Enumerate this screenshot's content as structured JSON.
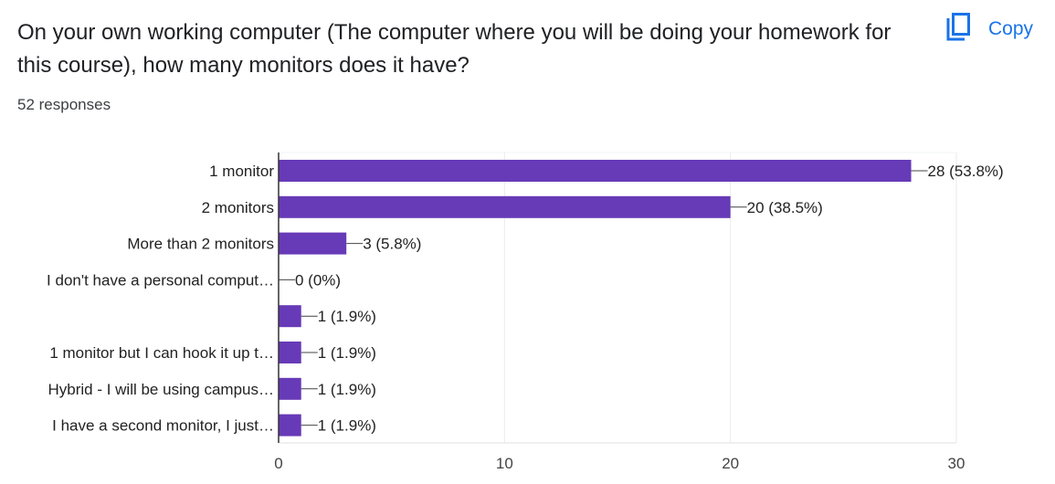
{
  "question": {
    "title": "On your own working computer (The computer where you will be doing your homework for this course), how many monitors does it have?",
    "responses": "52 responses"
  },
  "copy_button": {
    "label": "Copy",
    "icon": "copy-icon"
  },
  "colors": {
    "bar": "#673ab7",
    "accent": "#1a73e8"
  },
  "chart_data": {
    "type": "bar",
    "orientation": "horizontal",
    "categories": [
      "1 monitor",
      "2 monitors",
      "More than 2 monitors",
      "I don't have a personal comput…",
      "",
      "1 monitor but I can hook it up t…",
      "Hybrid - I will be using campus…",
      "I have a second monitor, I just…"
    ],
    "values": [
      28,
      20,
      3,
      0,
      1,
      1,
      1,
      1
    ],
    "data_labels": [
      "28 (53.8%)",
      "20 (38.5%)",
      "3 (5.8%)",
      "0 (0%)",
      "1 (1.9%)",
      "1 (1.9%)",
      "1 (1.9%)",
      "1 (1.9%)"
    ],
    "xlim": [
      0,
      30
    ],
    "x_ticks": [
      0,
      10,
      20,
      30
    ],
    "grid": true,
    "title": "",
    "xlabel": "",
    "ylabel": ""
  }
}
